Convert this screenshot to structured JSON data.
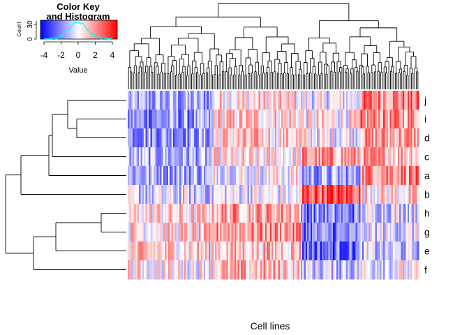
{
  "chart_data": {
    "type": "heatmap",
    "xlabel": "Cell lines",
    "rows": [
      "j",
      "i",
      "d",
      "c",
      "a",
      "b",
      "h",
      "g",
      "e",
      "f"
    ],
    "num_columns": 180,
    "color_scale": {
      "low": "#0000ff",
      "mid": "#ffffff",
      "high": "#ff0000",
      "range": [
        -4.5,
        4.5
      ]
    },
    "row_dendrogram": true,
    "column_dendrogram": true,
    "column_labels_shown": false
  },
  "color_key": {
    "title_line1": "Color Key",
    "title_line2": "and Histogram",
    "ylabel": "Count",
    "y_ticks": [
      "0",
      "30"
    ],
    "x_ticks": [
      "-4",
      "-2",
      "0",
      "2",
      "4"
    ],
    "xlabel": "Value",
    "histogram_color": "#00ffff"
  }
}
